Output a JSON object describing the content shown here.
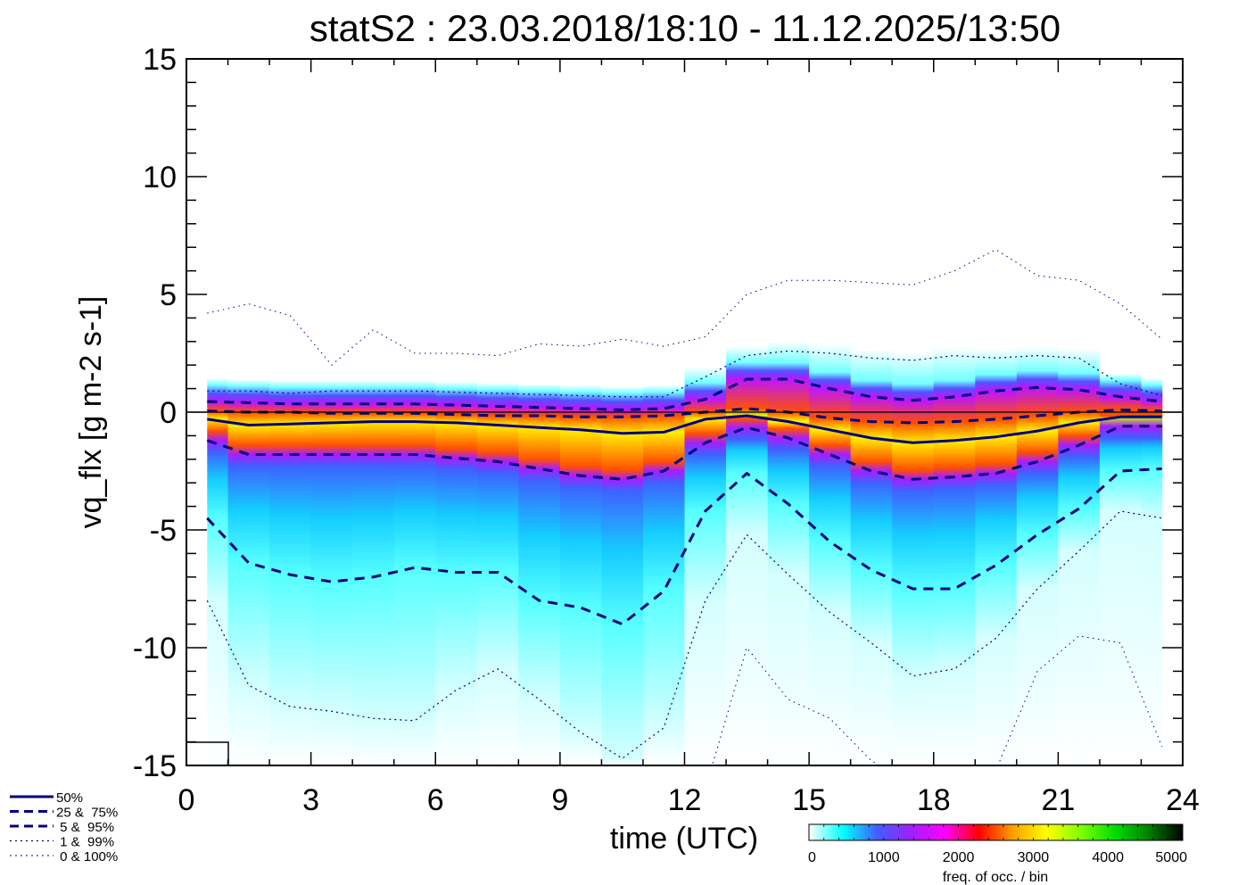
{
  "chart_data": {
    "type": "line",
    "title": "statS2 : 23.03.2018/18:10 - 11.12.2025/13:50",
    "xlabel": "time (UTC)",
    "ylabel": "vq_flx [g m-2 s-1]",
    "xlim": [
      0,
      24
    ],
    "ylim": [
      -15,
      15
    ],
    "xticks": [
      "0",
      "3",
      "6",
      "9",
      "12",
      "15",
      "18",
      "21",
      "24"
    ],
    "xtick_values": [
      0,
      3,
      6,
      9,
      12,
      15,
      18,
      21,
      24
    ],
    "yticks": [
      "-15",
      "-10",
      "-5",
      "0",
      "5",
      "10",
      "15"
    ],
    "ytick_values": [
      -15,
      -10,
      -5,
      0,
      5,
      10,
      15
    ],
    "zero_line": 0,
    "x": [
      0.5,
      1.5,
      2.5,
      3.5,
      4.5,
      5.5,
      6.5,
      7.5,
      8.5,
      9.5,
      10.5,
      11.5,
      12.5,
      13.5,
      14.5,
      15.5,
      16.5,
      17.5,
      18.5,
      19.5,
      20.5,
      21.5,
      22.5,
      23.5
    ],
    "series": [
      {
        "name": "100%",
        "style": "dotted-thin",
        "values": [
          4.2,
          4.6,
          4.1,
          2.0,
          3.5,
          2.5,
          2.5,
          2.4,
          2.9,
          2.8,
          3.1,
          2.8,
          3.2,
          5.0,
          5.6,
          5.6,
          5.5,
          5.4,
          6.0,
          6.9,
          5.8,
          5.6,
          4.6,
          3.1
        ]
      },
      {
        "name": "99%",
        "style": "dotted",
        "values": [
          0.9,
          0.9,
          0.8,
          0.9,
          0.9,
          0.9,
          0.85,
          0.8,
          0.75,
          0.7,
          0.65,
          0.65,
          1.5,
          2.4,
          2.6,
          2.5,
          2.3,
          2.2,
          2.4,
          2.3,
          2.4,
          2.3,
          1.2,
          0.7
        ]
      },
      {
        "name": "95%",
        "style": "dashed",
        "values": [
          0.45,
          0.4,
          0.35,
          0.35,
          0.35,
          0.35,
          0.3,
          0.25,
          0.2,
          0.15,
          0.1,
          0.15,
          0.55,
          1.4,
          1.4,
          1.0,
          0.65,
          0.5,
          0.65,
          0.9,
          1.05,
          0.95,
          0.65,
          0.45
        ]
      },
      {
        "name": "75%",
        "style": "dashed",
        "values": [
          0.05,
          0.0,
          0.0,
          -0.05,
          -0.05,
          -0.05,
          -0.1,
          -0.15,
          -0.15,
          -0.2,
          -0.2,
          -0.15,
          0.0,
          0.15,
          0.0,
          -0.25,
          -0.4,
          -0.45,
          -0.4,
          -0.3,
          -0.15,
          0.0,
          0.1,
          0.05
        ]
      },
      {
        "name": "50%",
        "style": "solid",
        "values": [
          -0.3,
          -0.55,
          -0.5,
          -0.45,
          -0.4,
          -0.4,
          -0.45,
          -0.55,
          -0.65,
          -0.75,
          -0.9,
          -0.85,
          -0.3,
          -0.15,
          -0.4,
          -0.75,
          -1.1,
          -1.3,
          -1.2,
          -1.05,
          -0.8,
          -0.45,
          -0.2,
          -0.2
        ]
      },
      {
        "name": "25%",
        "style": "dashed",
        "values": [
          -1.2,
          -1.8,
          -1.8,
          -1.8,
          -1.8,
          -1.8,
          -1.95,
          -2.1,
          -2.4,
          -2.7,
          -2.85,
          -2.5,
          -1.3,
          -0.65,
          -1.1,
          -1.8,
          -2.5,
          -2.85,
          -2.75,
          -2.6,
          -2.1,
          -1.4,
          -0.6,
          -0.6
        ]
      },
      {
        "name": "5%",
        "style": "dashed",
        "values": [
          -4.5,
          -6.4,
          -6.9,
          -7.2,
          -7.0,
          -6.6,
          -6.8,
          -6.8,
          -8.0,
          -8.3,
          -9.0,
          -7.6,
          -4.2,
          -2.6,
          -3.9,
          -5.5,
          -6.7,
          -7.5,
          -7.5,
          -6.5,
          -5.2,
          -4.1,
          -2.5,
          -2.4
        ]
      },
      {
        "name": "1%",
        "style": "dotted",
        "values": [
          -8.0,
          -11.6,
          -12.5,
          -12.7,
          -13.0,
          -13.1,
          -11.8,
          -10.9,
          -12.2,
          -13.6,
          -14.7,
          -13.4,
          -8.0,
          -5.2,
          -6.9,
          -8.5,
          -9.8,
          -11.2,
          -10.9,
          -9.6,
          -7.5,
          -5.9,
          -4.2,
          -4.5
        ]
      },
      {
        "name": "0%",
        "style": "dotted-thin",
        "values": [
          null,
          null,
          null,
          null,
          null,
          null,
          null,
          null,
          null,
          null,
          null,
          null,
          -16.0,
          -10.0,
          -12.2,
          -13.0,
          -14.8,
          -15.8,
          -15.5,
          -15.2,
          -11.0,
          -9.5,
          -9.8,
          -14.2
        ]
      }
    ],
    "legend": {
      "placement": "bottom-left",
      "entries": [
        {
          "label": "50%",
          "style": "solid"
        },
        {
          "label": "25 &  75%",
          "style": "dashed"
        },
        {
          "label": " 5 &  95%",
          "style": "dashed"
        },
        {
          "label": " 1 &  99%",
          "style": "dotted"
        },
        {
          "label": " 0 & 100%",
          "style": "dotted-thin"
        }
      ]
    },
    "colorbar": {
      "label": "freq. of occ. / bin",
      "range": [
        0,
        5000
      ],
      "tick_labels": [
        "0",
        "1000",
        "2000",
        "3000",
        "4000",
        "5000"
      ],
      "tick_values": [
        0,
        1000,
        2000,
        3000,
        4000,
        5000
      ],
      "colors": [
        "#ffffff",
        "#00ffff",
        "#3f5fff",
        "#9f1fff",
        "#ff00ff",
        "#ff0000",
        "#ff9f00",
        "#ffff00",
        "#7fff00",
        "#00df00",
        "#007f00",
        "#000000"
      ]
    },
    "line_color": "#00007f"
  }
}
